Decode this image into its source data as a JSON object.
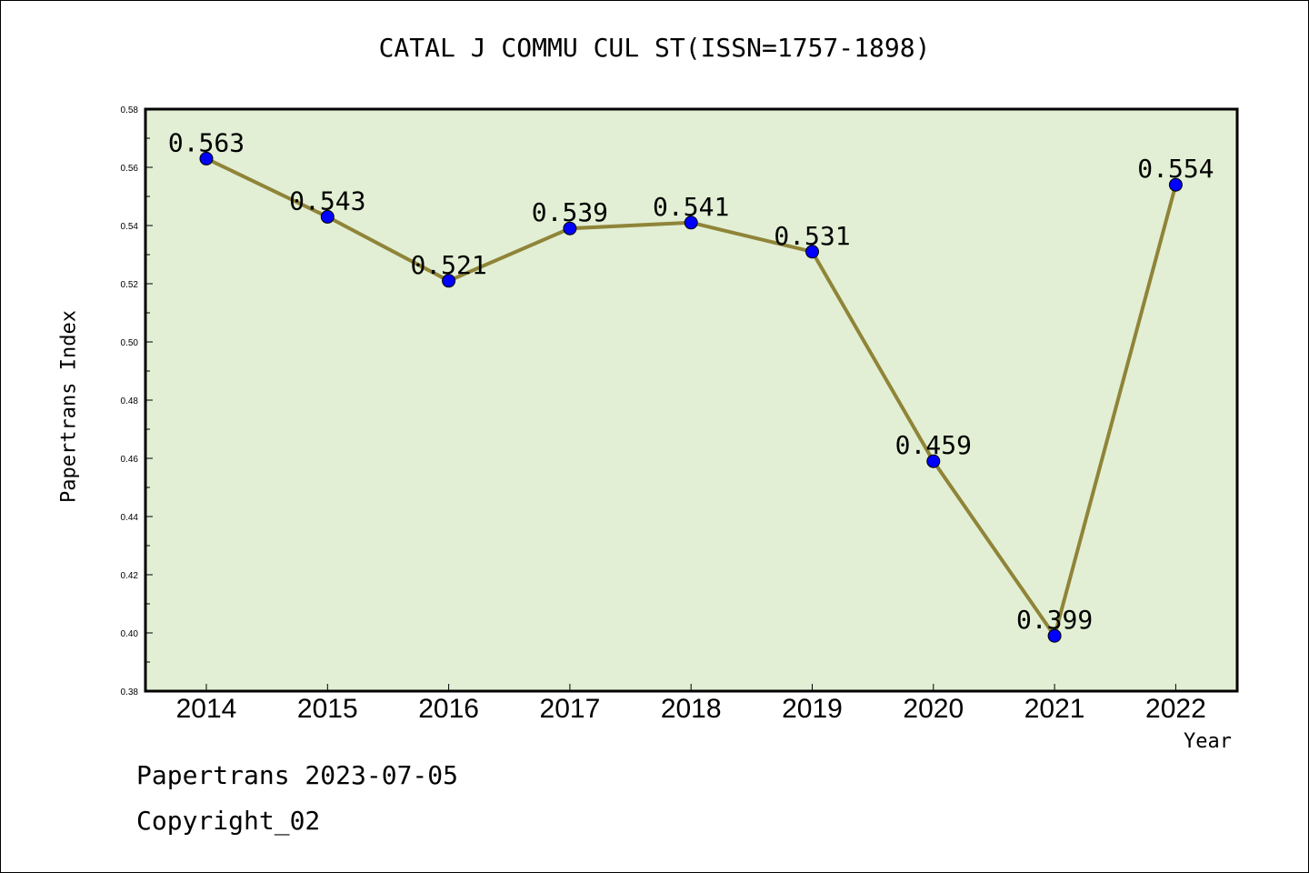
{
  "chart_data": {
    "type": "line",
    "title": "CATAL J COMMU CUL ST(ISSN=1757-1898)",
    "xlabel": "Year",
    "ylabel": "Papertrans Index",
    "categories": [
      "2014",
      "2015",
      "2016",
      "2017",
      "2018",
      "2019",
      "2020",
      "2021",
      "2022"
    ],
    "series": [
      {
        "values": [
          0.563,
          0.543,
          0.521,
          0.539,
          0.541,
          0.531,
          0.459,
          0.399,
          0.554
        ],
        "labels": [
          "0.563",
          "0.543",
          "0.521",
          "0.539",
          "0.541",
          "0.531",
          "0.459",
          "0.399",
          "0.554"
        ]
      }
    ],
    "ylim": [
      0.38,
      0.58
    ],
    "yticks": [
      "0.38",
      "0.40",
      "0.42",
      "0.44",
      "0.46",
      "0.48",
      "0.50",
      "0.52",
      "0.54",
      "0.56",
      "0.58"
    ],
    "grid": false,
    "colors": {
      "plot_background": "#e2efd4",
      "line": "#8f8438",
      "marker": "#0000ff"
    }
  },
  "footer": {
    "line1": "Papertrans 2023-07-05",
    "line2": "Copyright_02"
  }
}
